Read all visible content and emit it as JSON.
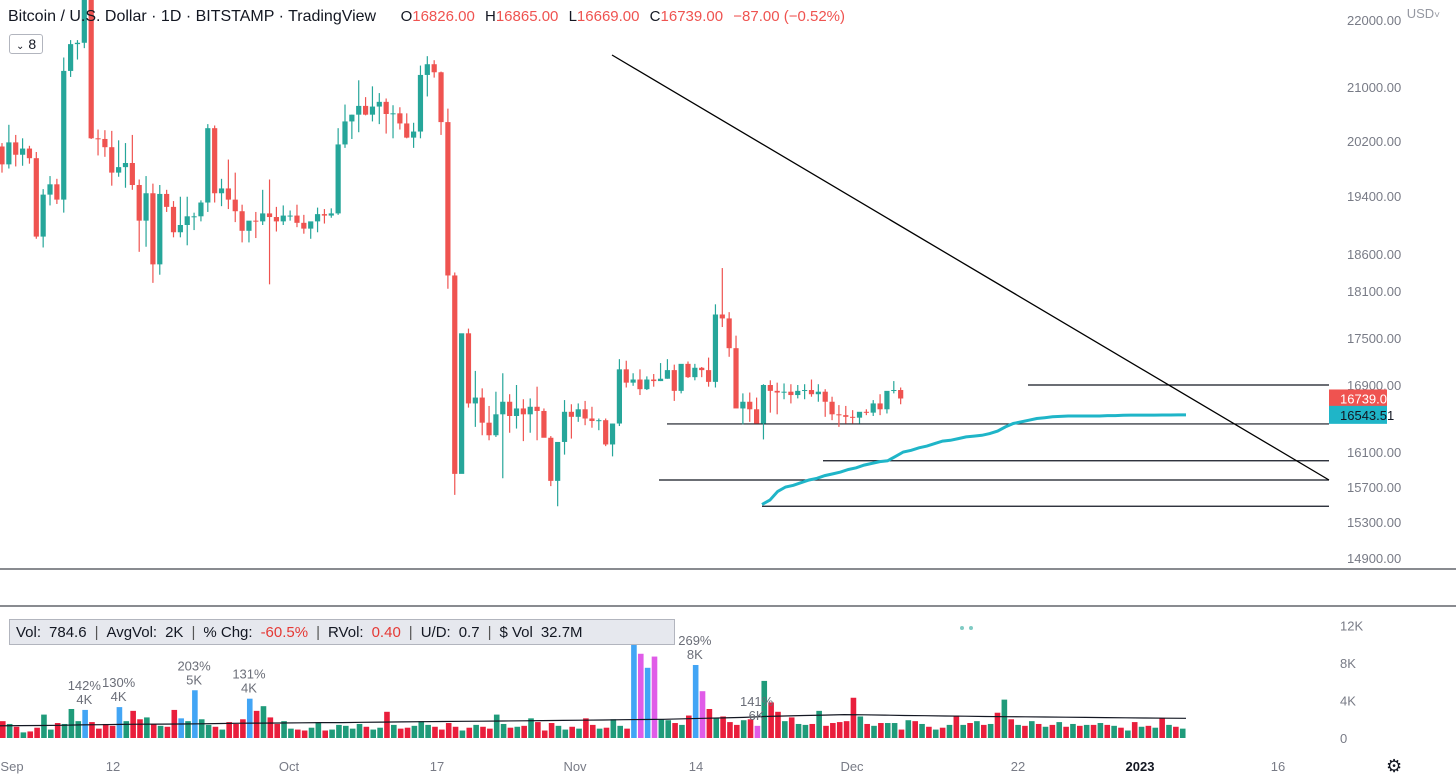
{
  "header": {
    "symbol": "Bitcoin / U.S. Dollar · 1D · BITSTAMP · TradingView",
    "o_label": "O",
    "o": "16826.00",
    "h_label": "H",
    "h": "16865.00",
    "l_label": "L",
    "l": "16669.00",
    "c_label": "C",
    "c": "16739.00",
    "change": "−87.00 (−0.52%)",
    "badge_value": "8",
    "currency": "USD"
  },
  "volume_box": {
    "vol_label": "Vol:",
    "vol": "784.6",
    "avgvol_label": "AvgVol:",
    "avgvol": "2K",
    "chg_label": "% Chg:",
    "chg": "-60.5%",
    "rvol_label": "RVol:",
    "rvol": "0.40",
    "ud_label": "U/D:",
    "ud": "0.7",
    "dvol_label": "$ Vol",
    "dvol": "32.7M"
  },
  "colors": {
    "up": "#26a69a",
    "down": "#ef5350",
    "vol_up": "#1f9b7a",
    "vol_down": "#e91e3c",
    "highlight_up": "#42a5f5",
    "highlight_down": "#e05ce8",
    "vwap": "#1fb5c8",
    "trend": "#000000"
  },
  "chart_data": [
    {
      "type": "candlestick",
      "title": "Bitcoin / U.S. Dollar · 1D · BITSTAMP · TradingView",
      "y_ticks": [
        "14900.00",
        "15300.00",
        "15700.00",
        "16100.00",
        "16900.00",
        "17500.00",
        "18100.00",
        "18600.00",
        "19400.00",
        "20200.00",
        "21000.00",
        "22000.00"
      ],
      "x_ticks": [
        "Sep",
        "12",
        "Oct",
        "17",
        "Nov",
        "14",
        "Dec",
        "22",
        "2023",
        "16"
      ],
      "price_labels": {
        "last": "16739.00",
        "vwap": "16543.51"
      },
      "candles_ohlc": [
        [
          20120,
          20170,
          19740,
          19860
        ],
        [
          19860,
          20440,
          19800,
          20180
        ],
        [
          20180,
          20290,
          19830,
          20000
        ],
        [
          20000,
          20240,
          19840,
          20090
        ],
        [
          20090,
          20130,
          19870,
          19950
        ],
        [
          19950,
          20040,
          18810,
          18840
        ],
        [
          18840,
          19500,
          18690,
          19420
        ],
        [
          19420,
          19690,
          19270,
          19570
        ],
        [
          19570,
          19650,
          19290,
          19350
        ],
        [
          19350,
          21440,
          19170,
          21240
        ],
        [
          21240,
          21700,
          21150,
          21640
        ],
        [
          21640,
          21700,
          21410,
          21660
        ],
        [
          21660,
          22730,
          21580,
          22420
        ],
        [
          22420,
          22540,
          20230,
          20240
        ],
        [
          20240,
          20370,
          19990,
          20230
        ],
        [
          20230,
          20360,
          19970,
          20110
        ],
        [
          20110,
          20350,
          19550,
          19740
        ],
        [
          19740,
          20210,
          19680,
          19820
        ],
        [
          19820,
          20170,
          19520,
          19880
        ],
        [
          19880,
          20290,
          19490,
          19560
        ],
        [
          19560,
          19640,
          18630,
          19060
        ],
        [
          19060,
          19690,
          18700,
          19440
        ],
        [
          19440,
          19580,
          18210,
          18460
        ],
        [
          18460,
          19560,
          18320,
          19430
        ],
        [
          19430,
          19490,
          19180,
          19250
        ],
        [
          19250,
          19330,
          18830,
          18900
        ],
        [
          18900,
          19390,
          18830,
          19000
        ],
        [
          19000,
          19390,
          18720,
          19120
        ],
        [
          19120,
          19170,
          18930,
          19120
        ],
        [
          19120,
          19340,
          19050,
          19310
        ],
        [
          19310,
          20450,
          19180,
          20390
        ],
        [
          20390,
          20430,
          19310,
          19440
        ],
        [
          19440,
          19650,
          19260,
          19510
        ],
        [
          19510,
          19930,
          19220,
          19350
        ],
        [
          19350,
          19740,
          19040,
          19190
        ],
        [
          19190,
          19280,
          18760,
          18920
        ],
        [
          18920,
          19030,
          18760,
          19060
        ],
        [
          19060,
          19180,
          18820,
          19050
        ],
        [
          19050,
          19490,
          19000,
          19160
        ],
        [
          19160,
          19640,
          18190,
          19110
        ],
        [
          19110,
          19250,
          18910,
          19050
        ],
        [
          19050,
          19270,
          19000,
          19130
        ],
        [
          19130,
          19200,
          19060,
          19130
        ],
        [
          19130,
          19280,
          18970,
          19030
        ],
        [
          19030,
          19140,
          18880,
          18950
        ],
        [
          18950,
          19000,
          18810,
          19050
        ],
        [
          19050,
          19240,
          18900,
          19150
        ],
        [
          19150,
          19220,
          19020,
          19130
        ],
        [
          19130,
          19230,
          19100,
          19160
        ],
        [
          19160,
          20390,
          19140,
          20150
        ],
        [
          20150,
          20740,
          20100,
          20490
        ],
        [
          20490,
          20590,
          20230,
          20590
        ],
        [
          20590,
          21100,
          20330,
          20720
        ],
        [
          20720,
          20850,
          20580,
          20590
        ],
        [
          20590,
          21010,
          20490,
          20710
        ],
        [
          20710,
          20910,
          20450,
          20780
        ],
        [
          20780,
          20830,
          20310,
          20600
        ],
        [
          20600,
          20730,
          20240,
          20610
        ],
        [
          20610,
          20700,
          20370,
          20460
        ],
        [
          20460,
          20610,
          20240,
          20250
        ],
        [
          20250,
          20470,
          20100,
          20340
        ],
        [
          20340,
          21320,
          20240,
          21180
        ],
        [
          21180,
          21460,
          20860,
          21340
        ],
        [
          21340,
          21400,
          21140,
          21220
        ],
        [
          21220,
          21230,
          20290,
          20480
        ],
        [
          20480,
          20680,
          18130,
          18310
        ],
        [
          18310,
          18350,
          15610,
          15850
        ],
        [
          15850,
          16900,
          15870,
          17560
        ],
        [
          17560,
          17620,
          16630,
          16680
        ],
        [
          16680,
          17080,
          16400,
          16750
        ],
        [
          16750,
          16860,
          16300,
          16450
        ],
        [
          16450,
          16650,
          16240,
          16300
        ],
        [
          16300,
          16820,
          16280,
          16550
        ],
        [
          16550,
          17050,
          15800,
          16700
        ],
        [
          16700,
          16790,
          16330,
          16530
        ],
        [
          16530,
          16900,
          16380,
          16620
        ],
        [
          16620,
          16730,
          16230,
          16550
        ],
        [
          16550,
          16740,
          16330,
          16640
        ],
        [
          16640,
          16880,
          16240,
          16590
        ],
        [
          16590,
          16620,
          16300,
          16270
        ],
        [
          16270,
          16290,
          15710,
          15770
        ],
        [
          15770,
          16200,
          15480,
          16220
        ],
        [
          16220,
          16720,
          16070,
          16580
        ],
        [
          16580,
          16670,
          16260,
          16520
        ],
        [
          16520,
          16680,
          16460,
          16610
        ],
        [
          16610,
          16710,
          16420,
          16500
        ],
        [
          16500,
          16640,
          16390,
          16470
        ],
        [
          16470,
          16500,
          16360,
          16480
        ],
        [
          16480,
          16500,
          16170,
          16190
        ],
        [
          16190,
          16440,
          16050,
          16440
        ],
        [
          16440,
          17230,
          16410,
          17100
        ],
        [
          17100,
          17210,
          16870,
          16930
        ],
        [
          16930,
          17050,
          16890,
          16970
        ],
        [
          16970,
          17100,
          16780,
          16850
        ],
        [
          16850,
          17010,
          16840,
          16970
        ],
        [
          16970,
          17040,
          16880,
          16950
        ],
        [
          16950,
          17180,
          16950,
          16980
        ],
        [
          16980,
          17230,
          16980,
          17090
        ],
        [
          17090,
          17160,
          16710,
          16830
        ],
        [
          16830,
          17140,
          16800,
          17170
        ],
        [
          17170,
          17200,
          16990,
          17000
        ],
        [
          17000,
          17170,
          16960,
          17120
        ],
        [
          17120,
          17130,
          17000,
          17090
        ],
        [
          17090,
          17250,
          16880,
          16940
        ],
        [
          16940,
          17930,
          16870,
          17800
        ],
        [
          17800,
          18410,
          17640,
          17750
        ],
        [
          17750,
          17830,
          17260,
          17370
        ],
        [
          17370,
          17530,
          16640,
          16620
        ],
        [
          16620,
          16800,
          16430,
          16700
        ],
        [
          16700,
          16810,
          16460,
          16610
        ],
        [
          16610,
          16750,
          16470,
          16440
        ],
        [
          16440,
          16910,
          16250,
          16900
        ],
        [
          16900,
          16960,
          16570,
          16830
        ],
        [
          16830,
          16930,
          16550,
          16810
        ],
        [
          16810,
          16920,
          16730,
          16820
        ],
        [
          16820,
          16910,
          16680,
          16780
        ],
        [
          16780,
          16900,
          16740,
          16830
        ],
        [
          16830,
          16910,
          16730,
          16840
        ],
        [
          16840,
          16970,
          16760,
          16790
        ],
        [
          16790,
          16910,
          16700,
          16820
        ],
        [
          16820,
          16850,
          16520,
          16700
        ],
        [
          16700,
          16760,
          16480,
          16550
        ],
        [
          16550,
          16660,
          16400,
          16540
        ],
        [
          16540,
          16650,
          16440,
          16520
        ],
        [
          16520,
          16600,
          16440,
          16510
        ],
        [
          16510,
          16560,
          16440,
          16580
        ],
        [
          16580,
          16610,
          16540,
          16570
        ],
        [
          16570,
          16720,
          16530,
          16680
        ],
        [
          16680,
          16790,
          16540,
          16610
        ],
        [
          16610,
          16770,
          16560,
          16830
        ],
        [
          16830,
          16950,
          16800,
          16840
        ],
        [
          16840,
          16870,
          16670,
          16739
        ]
      ],
      "vwap": [
        15500,
        15550,
        15650,
        15700,
        15720,
        15750,
        15780,
        15800,
        15830,
        15850,
        15870,
        15900,
        15920,
        15950,
        15970,
        15990,
        16000,
        16050,
        16100,
        16120,
        16150,
        16170,
        16200,
        16230,
        16240,
        16260,
        16280,
        16290,
        16300,
        16320,
        16350,
        16400,
        16440,
        16460,
        16480,
        16500,
        16510,
        16520,
        16525,
        16530,
        16530,
        16530,
        16530,
        16530,
        16535,
        16535,
        16538,
        16540,
        16540,
        16540,
        16541,
        16542,
        16542,
        16543,
        16543
      ],
      "support_levels": [
        16900,
        16435,
        16000,
        15780,
        15480
      ],
      "trendline": {
        "from": {
          "bar": 97,
          "price": 21680
        },
        "to": {
          "bar": 166,
          "price": 15780
        }
      }
    },
    {
      "type": "bar",
      "title": "Volume",
      "y_ticks": [
        "0",
        "4K",
        "8K",
        "12K"
      ],
      "ylim": [
        0,
        12500
      ],
      "annotations": [
        {
          "bar": 12,
          "pct": "142%",
          "val": "4K"
        },
        {
          "bar": 17,
          "pct": "130%",
          "val": "4K"
        },
        {
          "bar": 28,
          "pct": "203%",
          "val": "5K"
        },
        {
          "bar": 36,
          "pct": "131%",
          "val": "4K"
        },
        {
          "bar": 92,
          "pct": "",
          "val": "12K"
        },
        {
          "bar": 101,
          "pct": "269%",
          "val": "8K"
        },
        {
          "bar": 110,
          "pct": "141%",
          "val": "6K"
        }
      ],
      "highlights": [
        12,
        17,
        26,
        28,
        36,
        92,
        93,
        94,
        95,
        101,
        102,
        110
      ],
      "values": [
        1800,
        1500,
        1200,
        600,
        700,
        1100,
        2500,
        900,
        1600,
        1500,
        3100,
        1800,
        3000,
        1700,
        1000,
        1500,
        1300,
        3300,
        1800,
        2900,
        2000,
        2200,
        1500,
        1300,
        1200,
        3000,
        2100,
        1800,
        5100,
        2000,
        1400,
        1200,
        900,
        1700,
        1500,
        2000,
        4200,
        2900,
        3400,
        2200,
        1500,
        1800,
        1000,
        900,
        800,
        1100,
        1700,
        800,
        900,
        1400,
        1300,
        1000,
        1500,
        1200,
        900,
        1100,
        2800,
        1400,
        1000,
        1100,
        1300,
        1800,
        1400,
        1200,
        900,
        1600,
        1200,
        800,
        1100,
        1400,
        1200,
        1000,
        2500,
        1500,
        1100,
        1200,
        1300,
        2100,
        1700,
        800,
        1600,
        1300,
        900,
        1200,
        1000,
        2100,
        1400,
        1000,
        1100,
        2000,
        1300,
        1000,
        10500,
        9000,
        7500,
        8700,
        2000,
        1900,
        1600,
        1400,
        2400,
        7800,
        5000,
        3100,
        2100,
        2300,
        1700,
        1400,
        1900,
        2000,
        1300,
        6100,
        3800,
        2800,
        1800,
        2200,
        1500,
        1400,
        1500,
        2900,
        1300,
        1600,
        1700,
        1800,
        4300,
        2300,
        1500,
        1300,
        1600,
        1600,
        1600,
        900,
        1900,
        1800,
        1500,
        1200,
        900,
        1100,
        1400,
        2400,
        1400,
        1600,
        1800,
        1400,
        1500,
        2700,
        4100,
        2000,
        1400,
        1300,
        1800,
        1500,
        1200,
        1400,
        1700,
        1200,
        1500,
        1300,
        1400,
        1400,
        1600,
        1400,
        1300,
        1100,
        800,
        1700,
        1200,
        1300,
        1100,
        2100,
        1400,
        1200,
        1000
      ],
      "avg_line": [
        1300,
        1320,
        1340,
        1360,
        1400,
        1420,
        1450,
        1470,
        1480,
        1500,
        1520,
        1550,
        1580,
        1590,
        1600,
        1620,
        1640,
        1650,
        1680,
        1700,
        1720,
        1740,
        1760,
        1780,
        1800,
        1820,
        1840,
        1860,
        1880,
        1900,
        1920,
        1950,
        1980,
        2000,
        2050,
        2100,
        2150,
        2200,
        2300,
        2350,
        2400,
        2450,
        2500,
        2480,
        2450,
        2400,
        2380,
        2350,
        2330,
        2300,
        2280,
        2260,
        2240,
        2220,
        2200,
        2180,
        2160,
        2140,
        2120,
        2100
      ]
    }
  ]
}
